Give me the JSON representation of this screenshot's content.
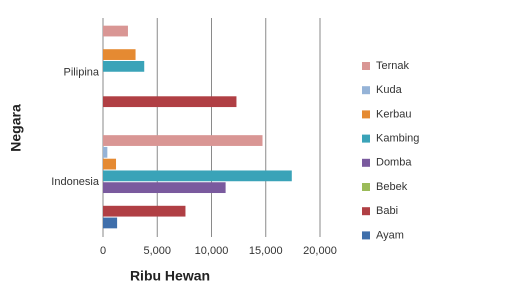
{
  "chart_data": {
    "type": "bar",
    "orientation": "horizontal",
    "xlabel": "Ribu Hewan",
    "ylabel": "Negara",
    "categories": [
      "Pilipina",
      "Indonesia"
    ],
    "series": [
      {
        "name": "Ternak",
        "color": "#d99694",
        "values": [
          2300,
          14700
        ]
      },
      {
        "name": "Kuda",
        "color": "#95b3d7",
        "values": [
          0,
          400
        ]
      },
      {
        "name": "Kerbau",
        "color": "#e58a32",
        "values": [
          3000,
          1200
        ]
      },
      {
        "name": "Kambing",
        "color": "#3aa3b8",
        "values": [
          3800,
          17400
        ]
      },
      {
        "name": "Domba",
        "color": "#7a5a9e",
        "values": [
          0,
          11300
        ]
      },
      {
        "name": "Bebek",
        "color": "#9bbb59",
        "values": [
          0,
          0
        ]
      },
      {
        "name": "Babi",
        "color": "#b03f44",
        "values": [
          12300,
          7600
        ]
      },
      {
        "name": "Ayam",
        "color": "#3f6fab",
        "values": [
          0,
          1300
        ]
      }
    ],
    "xlim": [
      0,
      20000
    ],
    "xticks": [
      0,
      {
        "value": 5000,
        "label": "5,000"
      },
      {
        "value": 10000,
        "label": "10,000"
      },
      {
        "value": 15000,
        "label": "15,000"
      },
      {
        "value": 20000,
        "label": "20,000"
      }
    ],
    "grid": true,
    "legend": "right"
  }
}
